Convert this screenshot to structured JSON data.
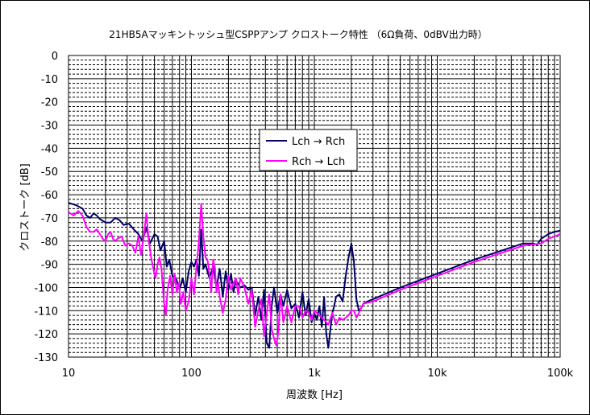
{
  "chart_data": {
    "type": "line",
    "title": "21HB5Aマッキントッシュ型CSPPアンプ クロストーク特性 （6Ω負荷、0dBV出力時）",
    "xlabel": "周波数 [Hz]",
    "ylabel": "クロストーク [dB]",
    "x_scale": "log",
    "xlim": [
      10,
      100000
    ],
    "ylim": [
      -130,
      0
    ],
    "x_ticks": [
      {
        "value": 10,
        "label": "10"
      },
      {
        "value": 100,
        "label": "100"
      },
      {
        "value": 1000,
        "label": "1k"
      },
      {
        "value": 10000,
        "label": "10k"
      },
      {
        "value": 100000,
        "label": "100k"
      }
    ],
    "y_ticks": [
      0,
      -10,
      -20,
      -30,
      -40,
      -50,
      -60,
      -70,
      -80,
      -90,
      -100,
      -110,
      -120,
      -130
    ],
    "y_tick_labels": [
      "0",
      "-10",
      "-20",
      "-30",
      "-40",
      "-50",
      "-60",
      "-70",
      "-80",
      "-90",
      "-100",
      "-110",
      "-120",
      "-130"
    ],
    "grid": true,
    "legend": "top-center",
    "series": [
      {
        "name": "Lch → Rch",
        "color": "#000066",
        "points": [
          [
            10,
            -63.5
          ],
          [
            11.5,
            -64.5
          ],
          [
            13,
            -66
          ],
          [
            14,
            -69
          ],
          [
            15,
            -70
          ],
          [
            16,
            -68
          ],
          [
            17,
            -69
          ],
          [
            18,
            -70.5
          ],
          [
            20,
            -72
          ],
          [
            22,
            -72
          ],
          [
            24,
            -70
          ],
          [
            26,
            -71
          ],
          [
            28,
            -73
          ],
          [
            31,
            -72.5
          ],
          [
            34,
            -75
          ],
          [
            37,
            -77
          ],
          [
            40,
            -80
          ],
          [
            43,
            -74
          ],
          [
            46,
            -81
          ],
          [
            50,
            -77
          ],
          [
            53,
            -78
          ],
          [
            56,
            -84
          ],
          [
            60,
            -80
          ],
          [
            63,
            -91
          ],
          [
            66,
            -88
          ],
          [
            70,
            -95
          ],
          [
            75,
            -96
          ],
          [
            80,
            -101
          ],
          [
            85,
            -96
          ],
          [
            90,
            -102
          ],
          [
            95,
            -93
          ],
          [
            100,
            -89
          ],
          [
            105,
            -91
          ],
          [
            110,
            -88
          ],
          [
            115,
            -95
          ],
          [
            120,
            -75
          ],
          [
            125,
            -92
          ],
          [
            130,
            -90
          ],
          [
            140,
            -96
          ],
          [
            150,
            -91
          ],
          [
            160,
            -100
          ],
          [
            170,
            -92
          ],
          [
            180,
            -104
          ],
          [
            190,
            -93
          ],
          [
            200,
            -101
          ],
          [
            210,
            -94
          ],
          [
            220,
            -102
          ],
          [
            230,
            -97
          ],
          [
            250,
            -100
          ],
          [
            270,
            -99
          ],
          [
            290,
            -101
          ],
          [
            310,
            -100
          ],
          [
            330,
            -112
          ],
          [
            350,
            -104
          ],
          [
            370,
            -114
          ],
          [
            390,
            -101
          ],
          [
            410,
            -124
          ],
          [
            430,
            -126
          ],
          [
            450,
            -108
          ],
          [
            470,
            -100
          ],
          [
            500,
            -111
          ],
          [
            530,
            -103
          ],
          [
            560,
            -108
          ],
          [
            600,
            -101
          ],
          [
            650,
            -109
          ],
          [
            700,
            -107
          ],
          [
            750,
            -113
          ],
          [
            800,
            -102
          ],
          [
            850,
            -112
          ],
          [
            900,
            -105
          ],
          [
            950,
            -115
          ],
          [
            1000,
            -111
          ],
          [
            1050,
            -114
          ],
          [
            1100,
            -108
          ],
          [
            1150,
            -117
          ],
          [
            1200,
            -104
          ],
          [
            1250,
            -120
          ],
          [
            1300,
            -126
          ],
          [
            1350,
            -118
          ],
          [
            1400,
            -111
          ],
          [
            1450,
            -108
          ],
          [
            1500,
            -104
          ],
          [
            1600,
            -103
          ],
          [
            1700,
            -106
          ],
          [
            1800,
            -95
          ],
          [
            1900,
            -87
          ],
          [
            2000,
            -81
          ],
          [
            2100,
            -89
          ],
          [
            2200,
            -105
          ],
          [
            2300,
            -110
          ],
          [
            2400,
            -109
          ],
          [
            2500,
            -107
          ],
          [
            2700,
            -106
          ],
          [
            3000,
            -105
          ],
          [
            5000,
            -100
          ],
          [
            10000,
            -94
          ],
          [
            20000,
            -88
          ],
          [
            50000,
            -81
          ],
          [
            60000,
            -81
          ],
          [
            65000,
            -81.5
          ],
          [
            70000,
            -79
          ],
          [
            80000,
            -77
          ],
          [
            90000,
            -76
          ],
          [
            100000,
            -75.5
          ]
        ]
      },
      {
        "name": "Rch → Lch",
        "color": "#ff00ff",
        "points": [
          [
            10,
            -67.5
          ],
          [
            11,
            -69
          ],
          [
            12,
            -67
          ],
          [
            13,
            -69
          ],
          [
            14,
            -74
          ],
          [
            15,
            -76
          ],
          [
            16,
            -76
          ],
          [
            17,
            -75
          ],
          [
            18,
            -77
          ],
          [
            19,
            -79
          ],
          [
            20,
            -80
          ],
          [
            21,
            -77
          ],
          [
            22,
            -76
          ],
          [
            23,
            -79
          ],
          [
            24,
            -80
          ],
          [
            25,
            -79
          ],
          [
            27,
            -78
          ],
          [
            29,
            -82
          ],
          [
            31,
            -81
          ],
          [
            33,
            -82
          ],
          [
            35,
            -85
          ],
          [
            37,
            -78
          ],
          [
            39,
            -86
          ],
          [
            41,
            -78
          ],
          [
            43,
            -68
          ],
          [
            45,
            -80
          ],
          [
            47,
            -87
          ],
          [
            49,
            -92
          ],
          [
            51,
            -96
          ],
          [
            53,
            -90
          ],
          [
            55,
            -87
          ],
          [
            57,
            -92
          ],
          [
            60,
            -107
          ],
          [
            62,
            -112
          ],
          [
            64,
            -101
          ],
          [
            67,
            -95
          ],
          [
            70,
            -103
          ],
          [
            73,
            -94
          ],
          [
            76,
            -102
          ],
          [
            79,
            -98
          ],
          [
            82,
            -107
          ],
          [
            86,
            -102
          ],
          [
            90,
            -110
          ],
          [
            95,
            -106
          ],
          [
            100,
            -96
          ],
          [
            105,
            -103
          ],
          [
            110,
            -91
          ],
          [
            115,
            -80
          ],
          [
            120,
            -64
          ],
          [
            125,
            -78
          ],
          [
            130,
            -87
          ],
          [
            135,
            -88
          ],
          [
            140,
            -94
          ],
          [
            145,
            -102
          ],
          [
            150,
            -88
          ],
          [
            155,
            -91
          ],
          [
            160,
            -102
          ],
          [
            165,
            -98
          ],
          [
            170,
            -104
          ],
          [
            180,
            -111
          ],
          [
            190,
            -105
          ],
          [
            200,
            -95
          ],
          [
            210,
            -101
          ],
          [
            220,
            -98
          ],
          [
            230,
            -96
          ],
          [
            240,
            -103
          ],
          [
            250,
            -96
          ],
          [
            270,
            -100
          ],
          [
            290,
            -107
          ],
          [
            310,
            -101
          ],
          [
            330,
            -117
          ],
          [
            350,
            -110
          ],
          [
            370,
            -105
          ],
          [
            390,
            -121
          ],
          [
            410,
            -111
          ],
          [
            430,
            -103
          ],
          [
            450,
            -118
          ],
          [
            470,
            -122
          ],
          [
            490,
            -125
          ],
          [
            510,
            -119
          ],
          [
            530,
            -103
          ],
          [
            560,
            -115
          ],
          [
            600,
            -108
          ],
          [
            650,
            -115
          ],
          [
            700,
            -108
          ],
          [
            750,
            -108
          ],
          [
            800,
            -113
          ],
          [
            850,
            -110
          ],
          [
            900,
            -111
          ],
          [
            950,
            -114
          ],
          [
            1000,
            -110
          ],
          [
            1100,
            -112
          ],
          [
            1200,
            -114
          ],
          [
            1300,
            -116
          ],
          [
            1400,
            -111
          ],
          [
            1500,
            -116
          ],
          [
            1600,
            -113
          ],
          [
            1700,
            -114
          ],
          [
            1800,
            -113
          ],
          [
            1900,
            -112
          ],
          [
            2000,
            -110
          ],
          [
            2100,
            -110
          ],
          [
            2200,
            -113
          ],
          [
            2300,
            -111
          ],
          [
            2500,
            -107
          ],
          [
            3000,
            -106
          ],
          [
            5000,
            -101
          ],
          [
            10000,
            -95
          ],
          [
            20000,
            -89
          ],
          [
            50000,
            -82
          ],
          [
            70000,
            -81
          ],
          [
            80000,
            -79
          ],
          [
            90000,
            -78
          ],
          [
            100000,
            -77
          ]
        ]
      }
    ]
  }
}
